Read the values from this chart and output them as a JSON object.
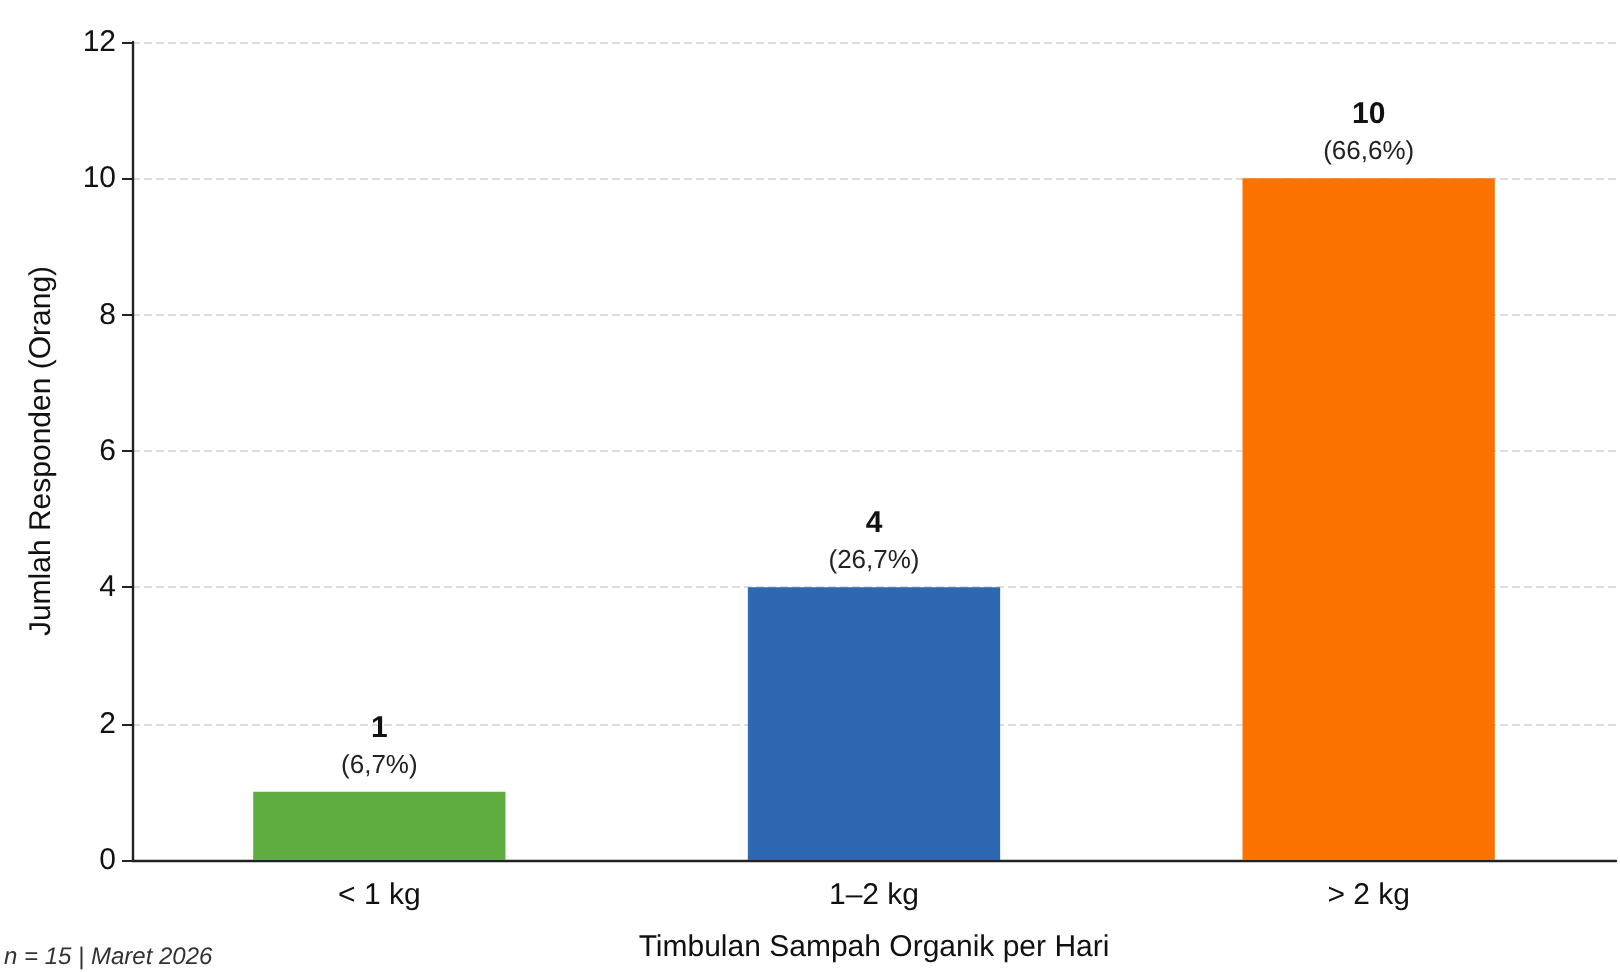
{
  "chart_data": {
    "type": "bar",
    "xlabel": "Timbulan Sampah Organik per Hari",
    "ylabel": "Jumlah Responden (Orang)",
    "categories": [
      "< 1 kg",
      "1–2 kg",
      "> 2 kg"
    ],
    "values": [
      1,
      4,
      10
    ],
    "colors": [
      "#5fad41",
      "#2e67b1",
      "#fc7200"
    ],
    "value_labels": [
      "1\n(6,7%)",
      "4\n(26,7%)",
      "10\n(66,6%)"
    ],
    "ylim": [
      0,
      12
    ],
    "yticks": [
      0,
      2,
      4,
      6,
      8,
      10,
      12
    ],
    "grid": "y",
    "annotations": [
      "n = 15 | Maret 2026"
    ]
  }
}
